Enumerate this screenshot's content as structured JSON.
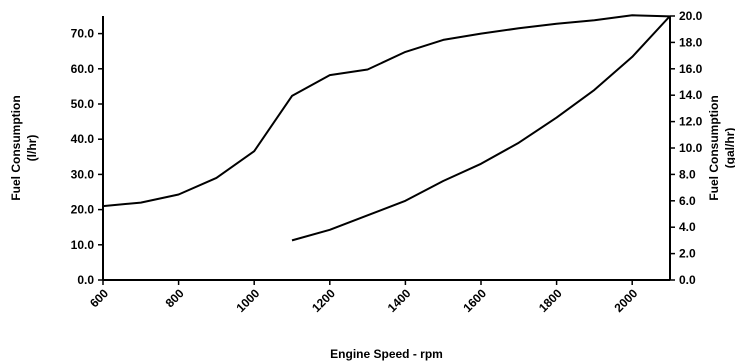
{
  "chart_data": {
    "type": "line",
    "title": "",
    "xlabel": "Engine Speed - rpm",
    "ylabel": "Fuel Consumption\n(l/hr)",
    "y2label": "Fuel Consumption\n(gal/hr)",
    "xlim": [
      600,
      2100
    ],
    "ylim": [
      0,
      75
    ],
    "y2lim": [
      0,
      20
    ],
    "x_ticks": [
      "600",
      "800",
      "1000",
      "1200",
      "1400",
      "1600",
      "1800",
      "2000"
    ],
    "y_ticks": [
      "0.0",
      "10.0",
      "20.0",
      "30.0",
      "40.0",
      "50.0",
      "60.0",
      "70.0"
    ],
    "y2_ticks": [
      "0.0",
      "2.0",
      "4.0",
      "6.0",
      "8.0",
      "10.0",
      "12.0",
      "14.0",
      "16.0",
      "18.0",
      "20.0"
    ],
    "grid": false,
    "series": [
      {
        "axis": "left",
        "x": [
          600,
          700,
          800,
          900,
          1000,
          1100,
          1200,
          1300,
          1400,
          1500,
          1600,
          1700,
          1800,
          1900,
          2000,
          2100
        ],
        "values": [
          21.0,
          22.0,
          24.3,
          29.0,
          36.6,
          52.3,
          58.2,
          59.8,
          64.8,
          68.2,
          70.0,
          71.5,
          72.8,
          73.8,
          75.2,
          74.9
        ]
      },
      {
        "axis": "right",
        "x": [
          1100,
          1200,
          1300,
          1400,
          1500,
          1600,
          1700,
          1800,
          1900,
          2000,
          2100
        ],
        "values": [
          3.0,
          3.8,
          4.9,
          6.0,
          7.5,
          8.8,
          10.4,
          12.3,
          14.4,
          16.9,
          20.0
        ]
      }
    ]
  },
  "colors": {
    "line": "#000000",
    "axis": "#000000",
    "background": "#ffffff"
  }
}
